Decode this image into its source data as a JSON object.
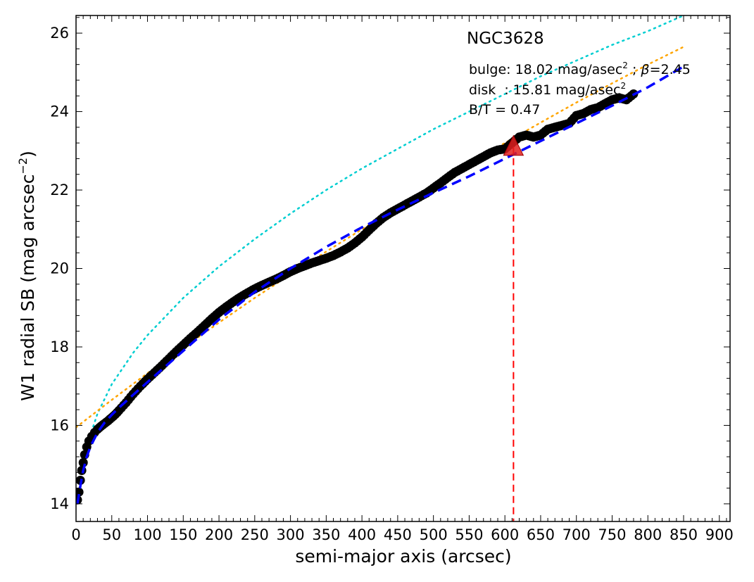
{
  "chart_data": {
    "type": "scatter",
    "title": "",
    "xlabel": "semi-major axis (arcsec)",
    "ylabel_main": "W1 radial SB (mag arcsec",
    "ylabel_sup": "−2",
    "ylabel_close": ")",
    "xlim": [
      0,
      915
    ],
    "ylim": [
      26.45,
      13.55
    ],
    "y_inverted": true,
    "x_ticks": [
      0,
      50,
      100,
      150,
      200,
      250,
      300,
      350,
      400,
      450,
      500,
      550,
      600,
      650,
      700,
      750,
      800,
      850,
      900
    ],
    "y_ticks": [
      14,
      16,
      18,
      20,
      22,
      24,
      26
    ],
    "annotations": {
      "galaxy": "NGC3628",
      "bulge_prefix": "bulge: 18.02 mag/asec",
      "bulge_sup": "2",
      "bulge_sep": " ; ",
      "bulge_beta_symbol": "β",
      "bulge_beta_value": "=2.45",
      "disk_prefix": "disk  : 15.81 mag/asec",
      "disk_sup": "2",
      "bt": "B/T = 0.47"
    },
    "series": [
      {
        "role": "observed profile",
        "style": "black circles",
        "color": "#000000",
        "x": [
          2,
          4,
          6,
          8,
          10,
          12,
          15,
          18,
          22,
          26,
          30,
          35,
          40,
          45,
          50,
          55,
          60,
          70,
          80,
          90,
          100,
          110,
          120,
          130,
          140,
          150,
          160,
          170,
          180,
          190,
          200,
          210,
          220,
          230,
          240,
          250,
          260,
          270,
          280,
          290,
          300,
          310,
          320,
          330,
          340,
          350,
          360,
          370,
          380,
          390,
          400,
          410,
          420,
          430,
          440,
          450,
          460,
          470,
          480,
          490,
          500,
          510,
          520,
          530,
          540,
          550,
          560,
          570,
          580,
          590,
          600,
          610,
          620,
          630,
          640,
          650,
          660,
          670,
          680,
          690,
          700,
          710,
          720,
          730,
          740,
          750,
          760,
          770,
          780
        ],
        "y": [
          14.1,
          14.3,
          14.6,
          14.85,
          15.05,
          15.25,
          15.45,
          15.6,
          15.72,
          15.82,
          15.9,
          15.98,
          16.05,
          16.12,
          16.2,
          16.28,
          16.38,
          16.58,
          16.8,
          17.0,
          17.18,
          17.35,
          17.52,
          17.7,
          17.88,
          18.05,
          18.22,
          18.38,
          18.55,
          18.72,
          18.88,
          19.02,
          19.15,
          19.27,
          19.38,
          19.48,
          19.57,
          19.65,
          19.73,
          19.82,
          19.92,
          20.0,
          20.07,
          20.14,
          20.2,
          20.26,
          20.33,
          20.42,
          20.52,
          20.65,
          20.8,
          20.98,
          21.15,
          21.3,
          21.42,
          21.52,
          21.62,
          21.72,
          21.82,
          21.92,
          22.05,
          22.18,
          22.32,
          22.45,
          22.55,
          22.65,
          22.75,
          22.85,
          22.95,
          23.02,
          23.05,
          23.2,
          23.35,
          23.4,
          23.35,
          23.4,
          23.55,
          23.6,
          23.65,
          23.7,
          23.9,
          23.95,
          24.05,
          24.1,
          24.2,
          24.3,
          24.35,
          24.3,
          24.45
        ]
      },
      {
        "role": "total fit",
        "style": "blue dashed",
        "color": "#0000ff",
        "x": [
          2,
          5,
          10,
          15,
          20,
          30,
          40,
          50,
          60,
          80,
          100,
          150,
          200,
          250,
          300,
          350,
          400,
          450,
          500,
          550,
          600,
          650,
          700,
          750,
          800,
          850
        ],
        "y": [
          14.0,
          14.35,
          14.85,
          15.2,
          15.45,
          15.82,
          16.07,
          16.27,
          16.45,
          16.78,
          17.1,
          17.9,
          18.7,
          19.4,
          20.0,
          20.55,
          21.05,
          21.5,
          21.93,
          22.35,
          22.8,
          23.25,
          23.7,
          24.15,
          24.62,
          25.15
        ]
      },
      {
        "role": "disk component",
        "style": "orange dotted",
        "color": "#ffa500",
        "x": [
          0,
          50,
          100,
          150,
          200,
          250,
          300,
          350,
          400,
          450,
          500,
          550,
          600,
          650,
          700,
          750,
          800,
          850
        ],
        "y": [
          15.95,
          16.65,
          17.33,
          17.98,
          18.62,
          19.25,
          19.85,
          20.43,
          21.0,
          21.56,
          22.12,
          22.67,
          23.2,
          23.72,
          24.23,
          24.72,
          25.2,
          25.65
        ]
      },
      {
        "role": "bulge component",
        "style": "cyan dotted",
        "color": "#00ced1",
        "x": [
          10,
          15,
          20,
          30,
          50,
          80,
          100,
          150,
          200,
          250,
          300,
          350,
          400,
          450,
          500,
          550,
          600,
          650,
          700,
          750,
          800,
          850
        ],
        "y": [
          15.0,
          15.4,
          15.75,
          16.3,
          17.05,
          17.85,
          18.3,
          19.25,
          20.05,
          20.75,
          21.4,
          22.0,
          22.55,
          23.05,
          23.55,
          24.0,
          24.45,
          24.9,
          25.3,
          25.7,
          26.05,
          26.45
        ]
      }
    ],
    "marker": {
      "x": 612,
      "y": 23.1,
      "color": "#ff0000"
    }
  }
}
